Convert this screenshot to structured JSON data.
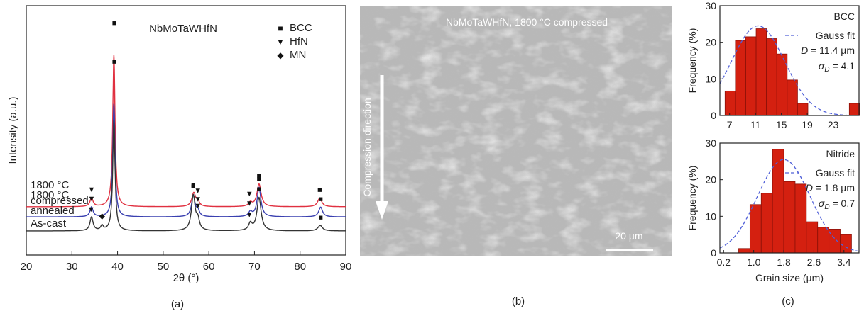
{
  "colors": {
    "compressed": "#e03040",
    "annealed": "#3a40b0",
    "ascast": "#333333",
    "bar_fill": "#d42010",
    "bar_stroke": "#8b1008",
    "fit": "#5060d8"
  },
  "panels": {
    "a_label": "(a)",
    "b_label": "(b)",
    "c_label": "(c)"
  },
  "chart_data": [
    {
      "type": "line",
      "title": "NbMoTaWHfN",
      "xlabel": "2θ (°)",
      "ylabel": "Intensity (a.u.)",
      "xlim": [
        20,
        90
      ],
      "xticks": [
        20,
        30,
        40,
        50,
        60,
        70,
        80,
        90
      ],
      "legend": [
        {
          "marker": "■",
          "label": "BCC"
        },
        {
          "marker": "▼",
          "label": "HfN"
        },
        {
          "marker": "◆",
          "label": "MN"
        }
      ],
      "series": [
        {
          "name": "1800 °C compressed",
          "label_lines": [
            "1800 °C",
            "compressed"
          ],
          "baseline": 0.62,
          "peaks": [
            [
              34.3,
              0.22,
              0.4
            ],
            [
              39.2,
              3.9,
              0.3
            ],
            [
              56.7,
              0.35,
              0.5
            ],
            [
              57.6,
              0.12,
              0.4
            ],
            [
              69.1,
              0.1,
              0.45
            ],
            [
              71.0,
              0.58,
              0.55
            ],
            [
              84.3,
              0.22,
              0.55
            ]
          ],
          "markers": [
            {
              "x": 34.3,
              "s": "▼"
            },
            {
              "x": 39.3,
              "s": "■"
            },
            {
              "x": 56.6,
              "s": "■"
            },
            {
              "x": 57.6,
              "s": "▼"
            },
            {
              "x": 68.9,
              "s": "▼"
            },
            {
              "x": 71.0,
              "s": "■"
            },
            {
              "x": 84.3,
              "s": "■"
            }
          ]
        },
        {
          "name": "1800 °C annealed",
          "label_lines": [
            "1800 °C",
            "annealed"
          ],
          "baseline": 0.36,
          "peaks": [
            [
              34.3,
              0.25,
              0.4
            ],
            [
              39.2,
              2.9,
              0.3
            ],
            [
              56.6,
              0.55,
              0.45
            ],
            [
              57.6,
              0.15,
              0.4
            ],
            [
              69.1,
              0.12,
              0.45
            ],
            [
              71.0,
              0.75,
              0.5
            ],
            [
              84.5,
              0.25,
              0.5
            ]
          ],
          "markers": [
            {
              "x": 34.3,
              "s": "▼"
            },
            {
              "x": 56.6,
              "s": "■"
            },
            {
              "x": 57.6,
              "s": "▼"
            },
            {
              "x": 68.9,
              "s": "▼"
            },
            {
              "x": 71.0,
              "s": "■"
            },
            {
              "x": 84.5,
              "s": "■"
            }
          ]
        },
        {
          "name": "As-cast",
          "label_lines": [
            "As-cast"
          ],
          "baseline": 0.0,
          "peaks": [
            [
              34.3,
              0.35,
              0.4
            ],
            [
              36.6,
              0.12,
              0.35
            ],
            [
              39.2,
              2.85,
              0.3
            ],
            [
              56.6,
              0.9,
              0.5
            ],
            [
              57.6,
              0.25,
              0.4
            ],
            [
              69.1,
              0.18,
              0.45
            ],
            [
              71.0,
              0.85,
              0.55
            ],
            [
              84.4,
              0.14,
              0.6
            ]
          ],
          "markers": [
            {
              "x": 34.2,
              "s": "▼"
            },
            {
              "x": 36.6,
              "s": "◆"
            },
            {
              "x": 56.6,
              "s": "■"
            },
            {
              "x": 57.6,
              "s": "▼"
            },
            {
              "x": 68.9,
              "s": "▼"
            },
            {
              "x": 71.0,
              "s": "■"
            },
            {
              "x": 84.5,
              "s": "■"
            }
          ]
        }
      ]
    },
    {
      "type": "bar",
      "title": "BCC",
      "ylabel": "Frequency (%)",
      "xlim": [
        5.5,
        27
      ],
      "ylim": [
        0,
        30
      ],
      "xticks": [
        7,
        11,
        15,
        19,
        23
      ],
      "yticks": [
        0,
        10,
        20,
        30
      ],
      "bin_width": 1.6,
      "bins": [
        6.3,
        7.9,
        9.5,
        11.1,
        12.7,
        14.3,
        15.9,
        17.5,
        25.5
      ],
      "values": [
        6.7,
        20.5,
        21.5,
        23.7,
        21.0,
        16.8,
        9.7,
        3.3,
        3.3
      ],
      "fit": {
        "label": "Gauss fit",
        "mean": 11.4,
        "sigma": 4.1,
        "peak": 24.5
      },
      "annotations": {
        "mean_label": "= 11.4 µm",
        "sigma_label": "= 4.1"
      }
    },
    {
      "type": "bar",
      "title": "Nitride",
      "xlabel": "Grain size (µm)",
      "ylabel": "Frequency (%)",
      "xlim": [
        0.1,
        3.8
      ],
      "ylim": [
        0,
        30
      ],
      "xticks": [
        0.2,
        1.0,
        1.8,
        2.6,
        3.4
      ],
      "yticks": [
        0,
        10,
        20,
        30
      ],
      "bin_width": 0.3,
      "bins": [
        0.6,
        0.9,
        1.2,
        1.5,
        1.8,
        2.1,
        2.4,
        2.7,
        3.0,
        3.3
      ],
      "values": [
        1.2,
        13.2,
        16.3,
        28.3,
        19.5,
        18.8,
        8.5,
        7.0,
        6.5,
        5.0
      ],
      "fit": {
        "label": "Gauss fit",
        "mean": 1.8,
        "sigma": 0.7,
        "peak": 25.5
      },
      "annotations": {
        "mean_label": "= 1.8 µm",
        "sigma_label": "= 0.7"
      }
    }
  ],
  "micrograph": {
    "title": "NbMoTaWHfN, 1800 °C compressed",
    "arrow_label": "Compression direction",
    "scale_bar": "20 µm"
  }
}
